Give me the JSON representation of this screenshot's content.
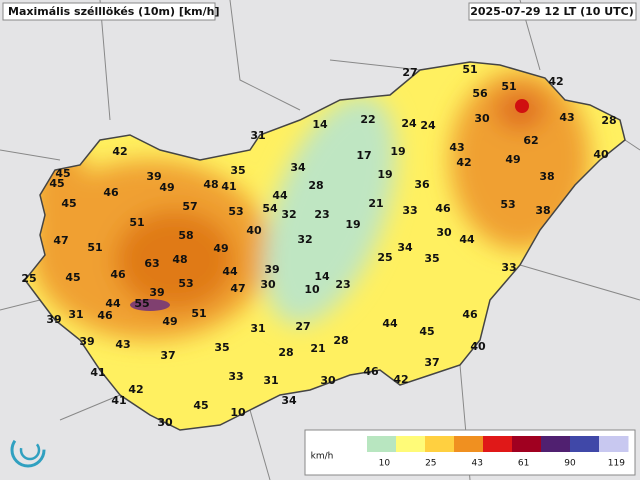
{
  "header": {
    "title": "Maximális szélllökés (10m) [km/h]",
    "timestamp": "2025-07-29 12 LT (10 UTC)"
  },
  "stations": [
    27,
    51,
    51,
    42,
    56,
    30,
    43,
    28,
    14,
    22,
    24,
    24,
    31,
    62,
    40,
    43,
    42,
    17,
    19,
    49,
    35,
    34,
    45,
    42,
    38,
    39,
    45,
    19,
    49,
    48,
    41,
    28,
    36,
    46,
    44,
    45,
    57,
    53,
    54,
    32,
    23,
    21,
    33,
    46,
    53,
    38,
    51,
    19,
    40,
    30,
    47,
    58,
    32,
    44,
    51,
    49,
    34,
    25,
    35,
    46,
    63,
    48,
    44,
    39,
    25,
    45,
    14,
    33,
    53,
    39,
    47,
    30,
    10,
    23,
    44,
    55,
    31,
    39,
    46,
    49,
    51,
    44,
    45,
    46,
    31,
    27,
    28,
    39,
    43,
    21,
    40,
    35,
    28,
    37,
    37,
    41,
    33,
    31,
    30,
    46,
    42,
    42,
    41,
    45,
    34,
    10,
    30
  ],
  "legend": {
    "unit": "km/h",
    "ticks": [
      10,
      25,
      43,
      61,
      90,
      119
    ],
    "colors": [
      "#ffffff",
      "#b8e6c0",
      "#fffb78",
      "#ffd040",
      "#f09020",
      "#e01818",
      "#a00020",
      "#502070",
      "#4048a8",
      "#c8c8f0"
    ]
  }
}
